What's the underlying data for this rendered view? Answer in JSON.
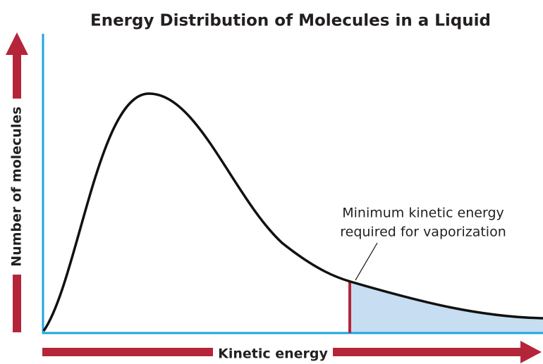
{
  "title": "Energy Distribution of Molecules in a Liquid",
  "y_axis_label": "Number of molecules",
  "x_axis_label": "Kinetic energy",
  "annotation": [
    "Minimum kinetic energy",
    "required for vaporization"
  ]
}
